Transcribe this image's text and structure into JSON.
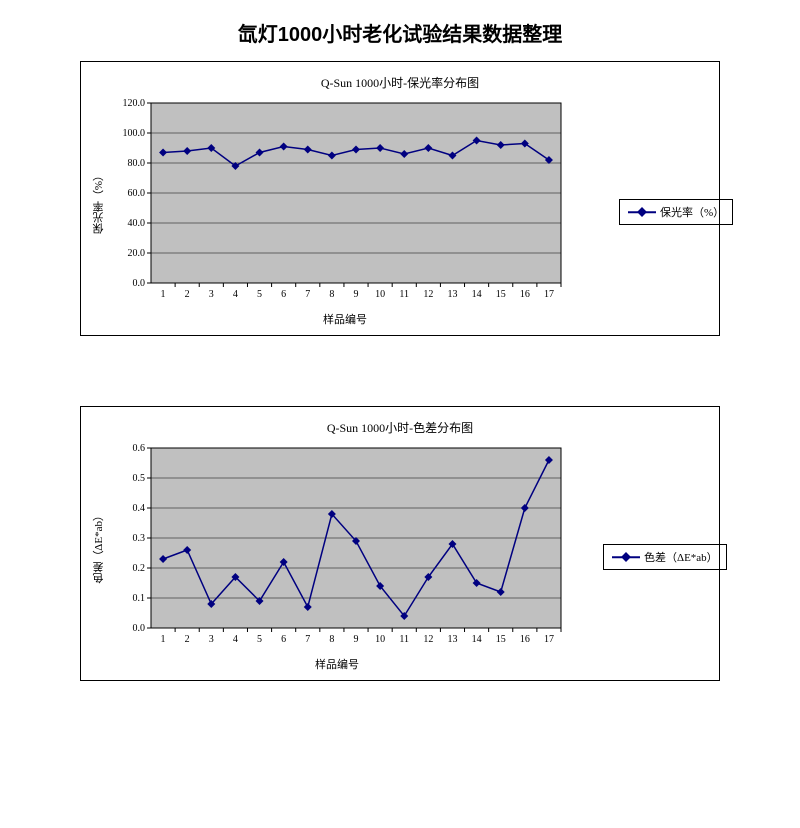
{
  "page": {
    "title": "氙灯1000小时老化试验结果数据整理"
  },
  "chart1": {
    "type": "line",
    "title": "Q-Sun 1000小时-保光率分布图",
    "xlabel": "样品编号",
    "ylabel": "保光率（%）",
    "legend_label": "保光率（%）",
    "categories": [
      "1",
      "2",
      "3",
      "4",
      "5",
      "6",
      "7",
      "8",
      "9",
      "10",
      "11",
      "12",
      "13",
      "14",
      "15",
      "16",
      "17"
    ],
    "values": [
      87,
      88,
      90,
      78,
      87,
      91,
      89,
      85,
      89,
      90,
      86,
      90,
      85,
      95,
      92,
      93,
      82
    ],
    "ylim": [
      0.0,
      120.0
    ],
    "ytick_step": 20.0,
    "y_decimals": 1,
    "line_color": "#000080",
    "marker_color": "#000080",
    "plot_bg": "#c0c0c0",
    "grid_color": "#000000",
    "marker_size": 4
  },
  "chart2": {
    "type": "line",
    "title": "Q-Sun 1000小时-色差分布图",
    "xlabel": "样品编号",
    "ylabel": "色差（ΔE*ab）",
    "legend_label": "色差（ΔE*ab）",
    "categories": [
      "1",
      "2",
      "3",
      "4",
      "5",
      "6",
      "7",
      "8",
      "9",
      "10",
      "11",
      "12",
      "13",
      "14",
      "15",
      "16",
      "17"
    ],
    "values": [
      0.23,
      0.26,
      0.08,
      0.17,
      0.09,
      0.22,
      0.07,
      0.38,
      0.29,
      0.14,
      0.04,
      0.17,
      0.28,
      0.15,
      0.12,
      0.4,
      0.56
    ],
    "ylim": [
      0,
      0.6
    ],
    "ytick_step": 0.1,
    "y_decimals": 1,
    "line_color": "#000080",
    "marker_color": "#000080",
    "plot_bg": "#c0c0c0",
    "grid_color": "#000000",
    "marker_size": 4
  }
}
